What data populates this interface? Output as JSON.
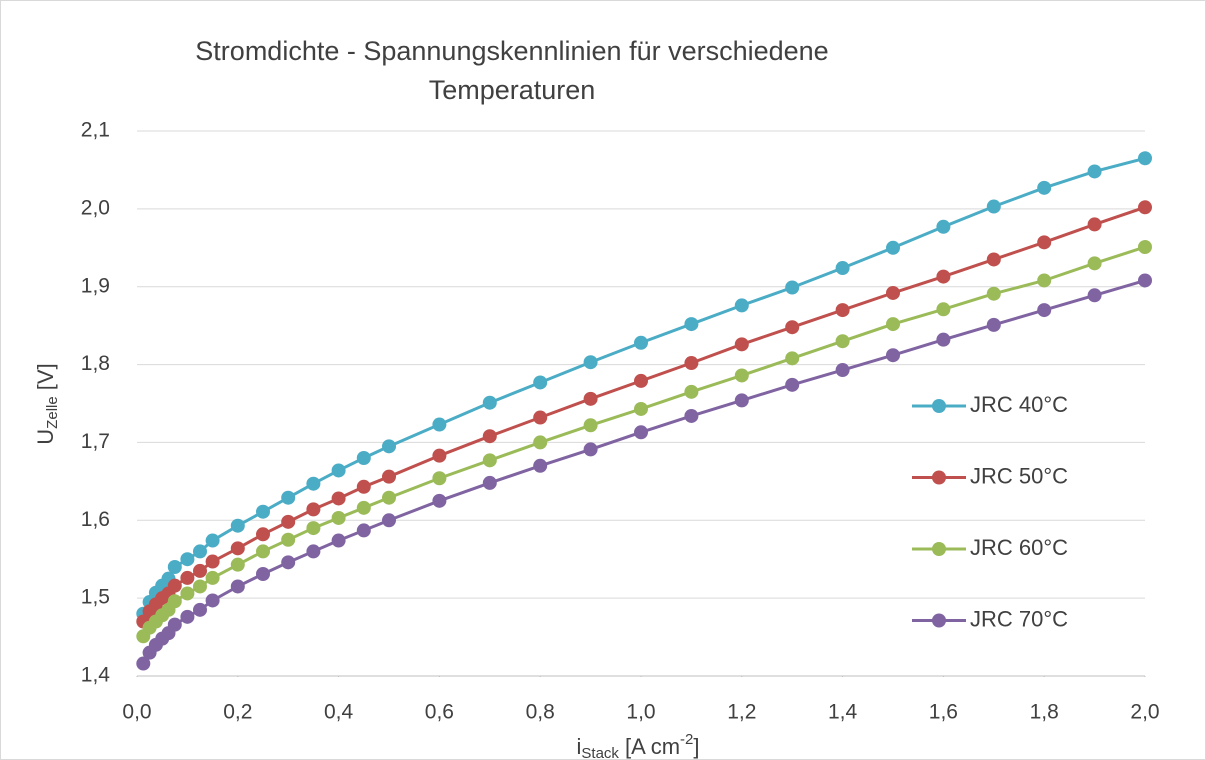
{
  "chart_data": {
    "type": "line",
    "title": [
      "Stromdichte - Spannungskennlinien für verschiedene",
      "Temperaturen"
    ],
    "x_label": {
      "main": "i",
      "sub": "Stack",
      "rest": " [A cm",
      "sup": "-2",
      "end": "]"
    },
    "y_label": {
      "main": "U",
      "sub": "Zelle",
      "rest": " [V]"
    },
    "x": [
      0.0125,
      0.025,
      0.0375,
      0.05,
      0.0625,
      0.075,
      0.1,
      0.125,
      0.15,
      0.2,
      0.25,
      0.3,
      0.35,
      0.4,
      0.45,
      0.5,
      0.6,
      0.7,
      0.8,
      0.9,
      1.0,
      1.1,
      1.2,
      1.3,
      1.4,
      1.5,
      1.6,
      1.7,
      1.8,
      1.9,
      2.0
    ],
    "series": [
      {
        "name": "JRC 40°C",
        "color": "#4bacc6",
        "values": [
          1.48,
          1.495,
          1.507,
          1.516,
          1.525,
          1.54,
          1.55,
          1.56,
          1.574,
          1.593,
          1.611,
          1.629,
          1.647,
          1.664,
          1.68,
          1.695,
          1.723,
          1.751,
          1.777,
          1.803,
          1.828,
          1.852,
          1.876,
          1.899,
          1.924,
          1.95,
          1.977,
          2.003,
          2.027,
          2.048,
          2.065
        ]
      },
      {
        "name": "JRC 50°C",
        "color": "#c0504d",
        "values": [
          1.47,
          1.483,
          1.492,
          1.5,
          1.506,
          1.516,
          1.526,
          1.535,
          1.547,
          1.564,
          1.582,
          1.598,
          1.614,
          1.628,
          1.643,
          1.656,
          1.683,
          1.708,
          1.732,
          1.756,
          1.779,
          1.802,
          1.826,
          1.848,
          1.87,
          1.892,
          1.913,
          1.935,
          1.957,
          1.98,
          2.002
        ]
      },
      {
        "name": "JRC 60°C",
        "color": "#9bbb59",
        "values": [
          1.451,
          1.462,
          1.47,
          1.478,
          1.485,
          1.496,
          1.506,
          1.515,
          1.526,
          1.543,
          1.56,
          1.575,
          1.59,
          1.603,
          1.616,
          1.629,
          1.654,
          1.677,
          1.7,
          1.722,
          1.743,
          1.765,
          1.786,
          1.808,
          1.83,
          1.852,
          1.871,
          1.891,
          1.908,
          1.93,
          1.951
        ]
      },
      {
        "name": "JRC 70°C",
        "color": "#8064a2",
        "values": [
          1.416,
          1.43,
          1.44,
          1.448,
          1.455,
          1.466,
          1.476,
          1.485,
          1.497,
          1.515,
          1.531,
          1.546,
          1.56,
          1.574,
          1.587,
          1.6,
          1.625,
          1.648,
          1.67,
          1.691,
          1.713,
          1.734,
          1.754,
          1.774,
          1.793,
          1.812,
          1.832,
          1.851,
          1.87,
          1.889,
          1.908
        ]
      }
    ],
    "xlim": [
      0,
      2.0
    ],
    "xticks": [
      {
        "value": 0,
        "label": "0,0"
      },
      {
        "value": 0.2,
        "label": "0,2"
      },
      {
        "value": 0.4,
        "label": "0,4"
      },
      {
        "value": 0.6,
        "label": "0,6"
      },
      {
        "value": 0.8,
        "label": "0,8"
      },
      {
        "value": 1.0,
        "label": "1,0"
      },
      {
        "value": 1.2,
        "label": "1,2"
      },
      {
        "value": 1.4,
        "label": "1,4"
      },
      {
        "value": 1.6,
        "label": "1,6"
      },
      {
        "value": 1.8,
        "label": "1,8"
      },
      {
        "value": 2.0,
        "label": "2,0"
      }
    ],
    "ylim": [
      1.4,
      2.1
    ],
    "yticks": [
      {
        "value": 1.4,
        "label": "1,4"
      },
      {
        "value": 1.5,
        "label": "1,5"
      },
      {
        "value": 1.6,
        "label": "1,6"
      },
      {
        "value": 1.7,
        "label": "1,7"
      },
      {
        "value": 1.8,
        "label": "1,8"
      },
      {
        "value": 1.9,
        "label": "1,9"
      },
      {
        "value": 2.0,
        "label": "2,0"
      },
      {
        "value": 2.1,
        "label": "2,1"
      }
    ],
    "grid": true,
    "legend": "right"
  }
}
